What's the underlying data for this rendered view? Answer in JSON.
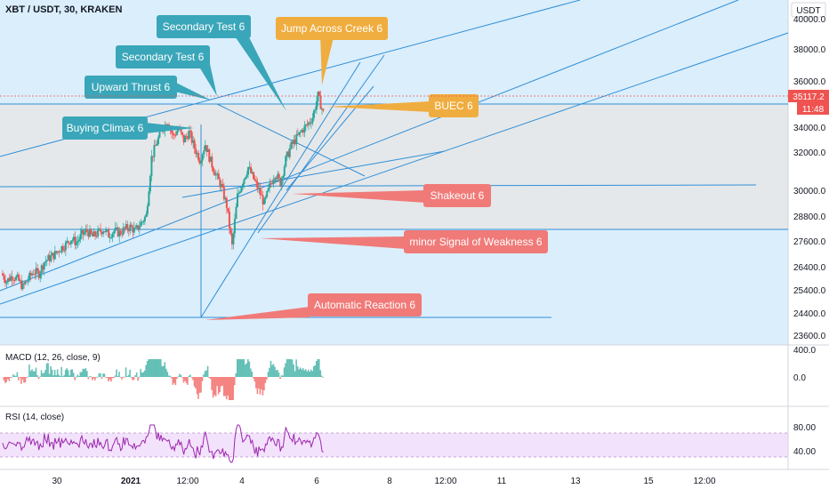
{
  "header": {
    "symbol": "XBT / USDT, 30, KRAKEN"
  },
  "price_axis": {
    "currency_badge": "USDT",
    "current_price": "35117.2",
    "countdown": "11:48",
    "ticks": [
      "40000.0",
      "38000.0",
      "36000.0",
      "34000.0",
      "32000.0",
      "30000.0",
      "28800.0",
      "27600.0",
      "26400.0",
      "25400.0",
      "24400.0",
      "23600.0"
    ]
  },
  "time_axis": {
    "ticks": [
      "30",
      "2021",
      "12:00",
      "4",
      "6",
      "8",
      "12:00",
      "11",
      "13",
      "15",
      "12:00"
    ]
  },
  "annotations": [
    {
      "text": "Secondary Test 6",
      "color": "#3aa6b9"
    },
    {
      "text": "Jump Across Creek 6",
      "color": "#f0ad3f"
    },
    {
      "text": "Secondary Test 6",
      "color": "#3aa6b9"
    },
    {
      "text": "Upward Thrust 6",
      "color": "#3aa6b9"
    },
    {
      "text": "BUEC 6",
      "color": "#f0ad3f"
    },
    {
      "text": "Buying Climax 6",
      "color": "#3aa6b9"
    },
    {
      "text": "Shakeout 6",
      "color": "#f07a78"
    },
    {
      "text": "minor Signal of Weakness 6",
      "color": "#f07a78"
    },
    {
      "text": "Automatic Reaction 6",
      "color": "#f07a78"
    }
  ],
  "macd": {
    "label": "MACD (12, 26, close, 9)",
    "ticks": [
      "400.0",
      "0.0"
    ]
  },
  "rsi": {
    "label": "RSI (14, close)",
    "ticks": [
      "80.00",
      "40.00"
    ],
    "line_color": "#9c27b0",
    "band_color": "#f3e2fb"
  },
  "colors": {
    "up": "#26a69a",
    "down": "#ef5350",
    "trend": "#2196f3",
    "bg": "#dbeefb",
    "range": "#e3e3e3"
  },
  "chart_data": {
    "type": "candlestick",
    "symbol": "XBT / USDT",
    "timeframe": "30",
    "exchange": "KRAKEN",
    "ylim": [
      23400,
      40400
    ],
    "range_box": {
      "high": 34700,
      "low": 27700
    },
    "approx_close_path": [
      26800,
      26400,
      26700,
      26500,
      26100,
      26500,
      26900,
      26800,
      27400,
      27600,
      27800,
      28100,
      28300,
      28600,
      28400,
      28800,
      29000,
      28700,
      28900,
      29100,
      28800,
      29000,
      28900,
      29100,
      29200,
      29000,
      29400,
      29800,
      32800,
      33600,
      34300,
      34700,
      33900,
      34300,
      33700,
      34100,
      33300,
      32700,
      33500,
      32600,
      31900,
      31300,
      30300,
      28200,
      30800,
      31600,
      32300,
      31700,
      31100,
      30400,
      31300,
      32000,
      31500,
      32700,
      33400,
      33800,
      34200,
      34500,
      34900,
      36000,
      35117
    ]
  }
}
